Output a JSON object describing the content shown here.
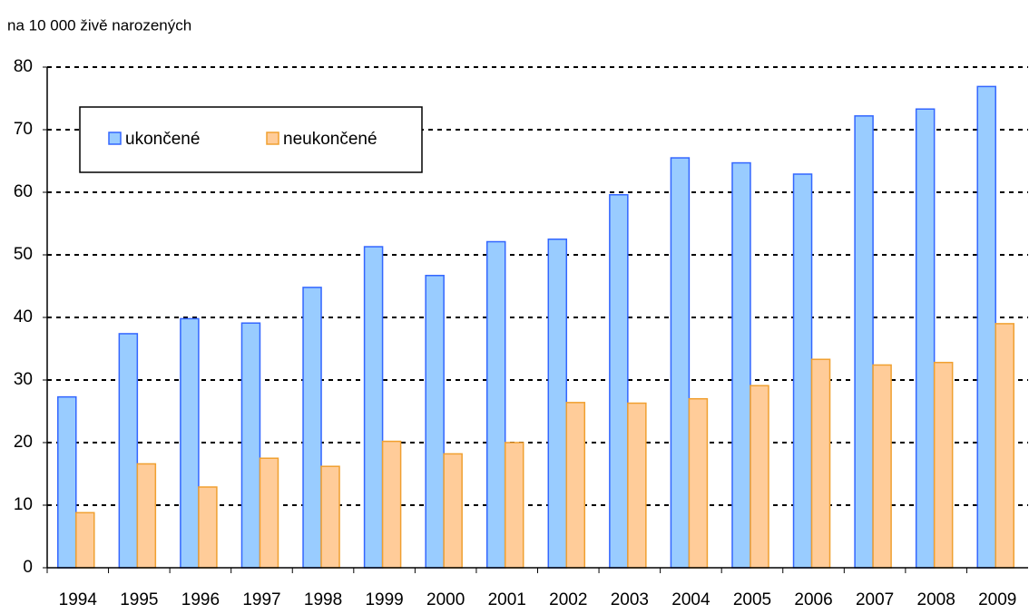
{
  "chart_data": {
    "type": "bar",
    "subtitle": "na 10 000 živě narozených",
    "categories": [
      "1994",
      "1995",
      "1996",
      "1997",
      "1998",
      "1999",
      "2000",
      "2001",
      "2002",
      "2003",
      "2004",
      "2005",
      "2006",
      "2007",
      "2008",
      "2009"
    ],
    "series": [
      {
        "name": "ukončené",
        "color": "#99ccff",
        "edge": "#3366ff",
        "values": [
          27.3,
          37.4,
          39.8,
          39.1,
          44.8,
          51.3,
          46.7,
          52.1,
          52.5,
          59.6,
          65.5,
          64.7,
          62.9,
          72.2,
          73.3,
          76.9
        ]
      },
      {
        "name": "neukončené",
        "color": "#ffcc99",
        "edge": "#f0a030",
        "values": [
          8.8,
          16.6,
          12.9,
          17.5,
          16.2,
          20.2,
          18.2,
          20.0,
          26.4,
          26.3,
          27.0,
          29.1,
          33.3,
          32.4,
          32.8,
          39.0
        ]
      }
    ],
    "ylim": [
      0,
      80
    ],
    "yticks": [
      0,
      10,
      20,
      30,
      40,
      50,
      60,
      70,
      80
    ],
    "grid": true,
    "legend": "upper left"
  }
}
